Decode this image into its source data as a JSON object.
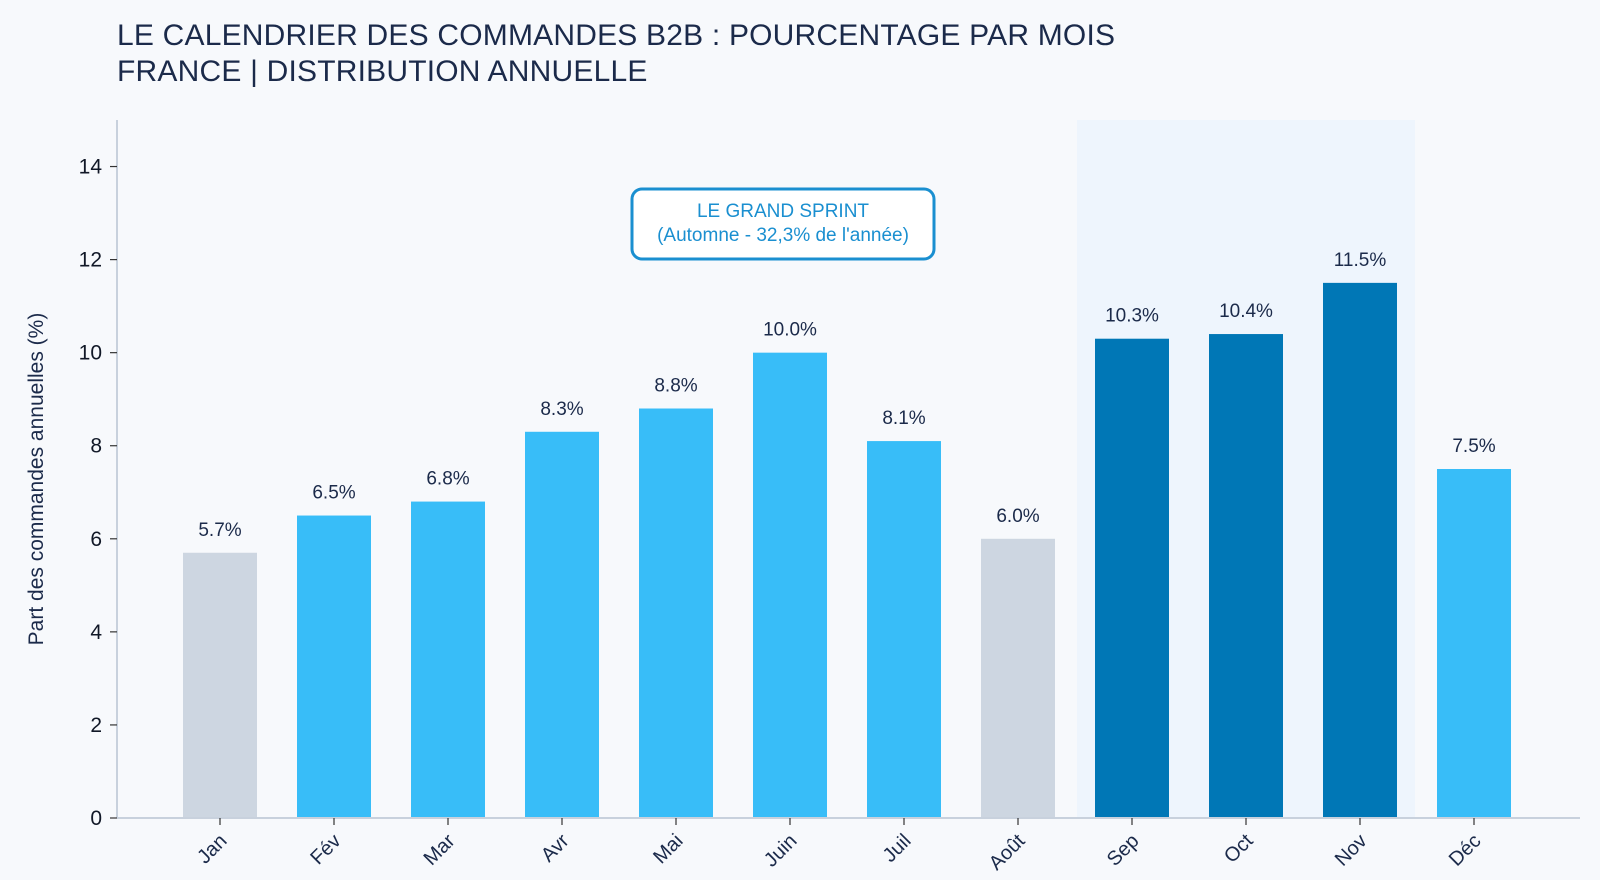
{
  "header": {
    "title": "LE CALENDRIER DES COMMANDES B2B : POURCENTAGE PAR MOIS",
    "subtitle": "FRANCE | DISTRIBUTION ANNUELLE"
  },
  "chart_data": {
    "type": "bar",
    "title": "LE CALENDRIER DES COMMANDES B2B : POURCENTAGE PAR MOIS",
    "subtitle": "FRANCE | DISTRIBUTION ANNUELLE",
    "xlabel": "",
    "ylabel": "Part des commandes annuelles (%)",
    "ylim": [
      0,
      15
    ],
    "yticks": [
      0,
      2,
      4,
      6,
      8,
      10,
      12,
      14
    ],
    "grid": false,
    "categories": [
      "Jan",
      "Fév",
      "Mar",
      "Avr",
      "Mai",
      "Juin",
      "Juil",
      "Août",
      "Sep",
      "Oct",
      "Nov",
      "Déc"
    ],
    "values": [
      5.7,
      6.5,
      6.8,
      8.3,
      8.8,
      10.0,
      8.1,
      6.0,
      10.3,
      10.4,
      11.5,
      7.5
    ],
    "value_labels": [
      "5.7%",
      "6.5%",
      "6.8%",
      "8.3%",
      "8.8%",
      "10.0%",
      "8.1%",
      "6.0%",
      "10.3%",
      "10.4%",
      "11.5%",
      "7.5%"
    ],
    "bar_groups": [
      "low",
      "normal",
      "normal",
      "normal",
      "normal",
      "normal",
      "normal",
      "low",
      "peak",
      "peak",
      "peak",
      "normal"
    ],
    "colors": {
      "low": "#cdd6e1",
      "normal": "#38bdf8",
      "peak": "#0077b6",
      "highlight_band": "#eef5fd",
      "annotation": "#1a8fd0",
      "axis": "#c8d1dd"
    },
    "highlight_range": [
      "Sep",
      "Nov"
    ],
    "annotation": {
      "line1": "LE GRAND SPRINT",
      "line2": "(Automne - 32,3% de l'année)"
    }
  }
}
